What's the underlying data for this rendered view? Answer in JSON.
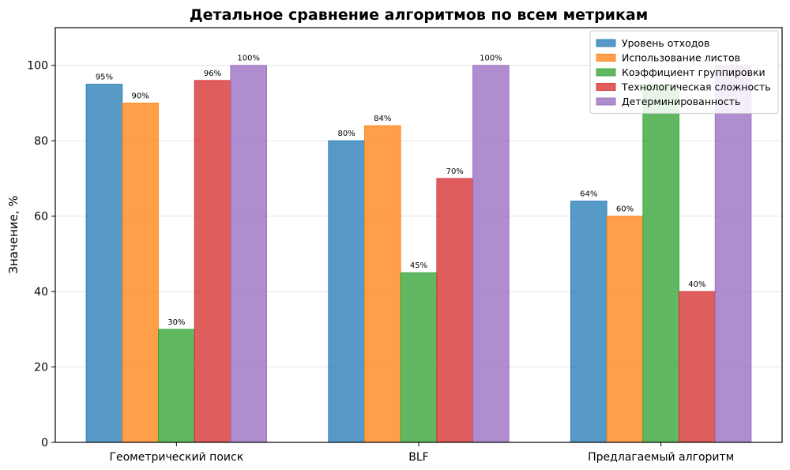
{
  "chart_data": {
    "type": "bar",
    "title": "Детальное сравнение алгоритмов по всем метрикам",
    "xlabel": "",
    "ylabel": "Значение, %",
    "ylim": [
      0,
      110
    ],
    "yticks": [
      0,
      20,
      40,
      60,
      80,
      100
    ],
    "grid": true,
    "legend_position": "top-right",
    "categories": [
      "Геометрический поиск",
      "BLF",
      "Предлагаемый алгоритм"
    ],
    "series": [
      {
        "name": "Уровень отходов",
        "color": "#1f77b4",
        "values": [
          95,
          80,
          64
        ],
        "labels": [
          "95%",
          "80%",
          "64%"
        ]
      },
      {
        "name": "Использование листов",
        "color": "#ff7f0e",
        "values": [
          90,
          84,
          60
        ],
        "labels": [
          "90%",
          "84%",
          "60%"
        ]
      },
      {
        "name": "Коэффициент группировки",
        "color": "#2ca02c",
        "values": [
          30,
          45,
          95
        ],
        "labels": [
          "30%",
          "45%",
          ""
        ]
      },
      {
        "name": "Технологическая сложность",
        "color": "#d62728",
        "values": [
          96,
          70,
          40
        ],
        "labels": [
          "96%",
          "70%",
          "40%"
        ]
      },
      {
        "name": "Детерминированность",
        "color": "#9467bd",
        "values": [
          100,
          100,
          100
        ],
        "labels": [
          "100%",
          "100%",
          ""
        ]
      }
    ]
  }
}
